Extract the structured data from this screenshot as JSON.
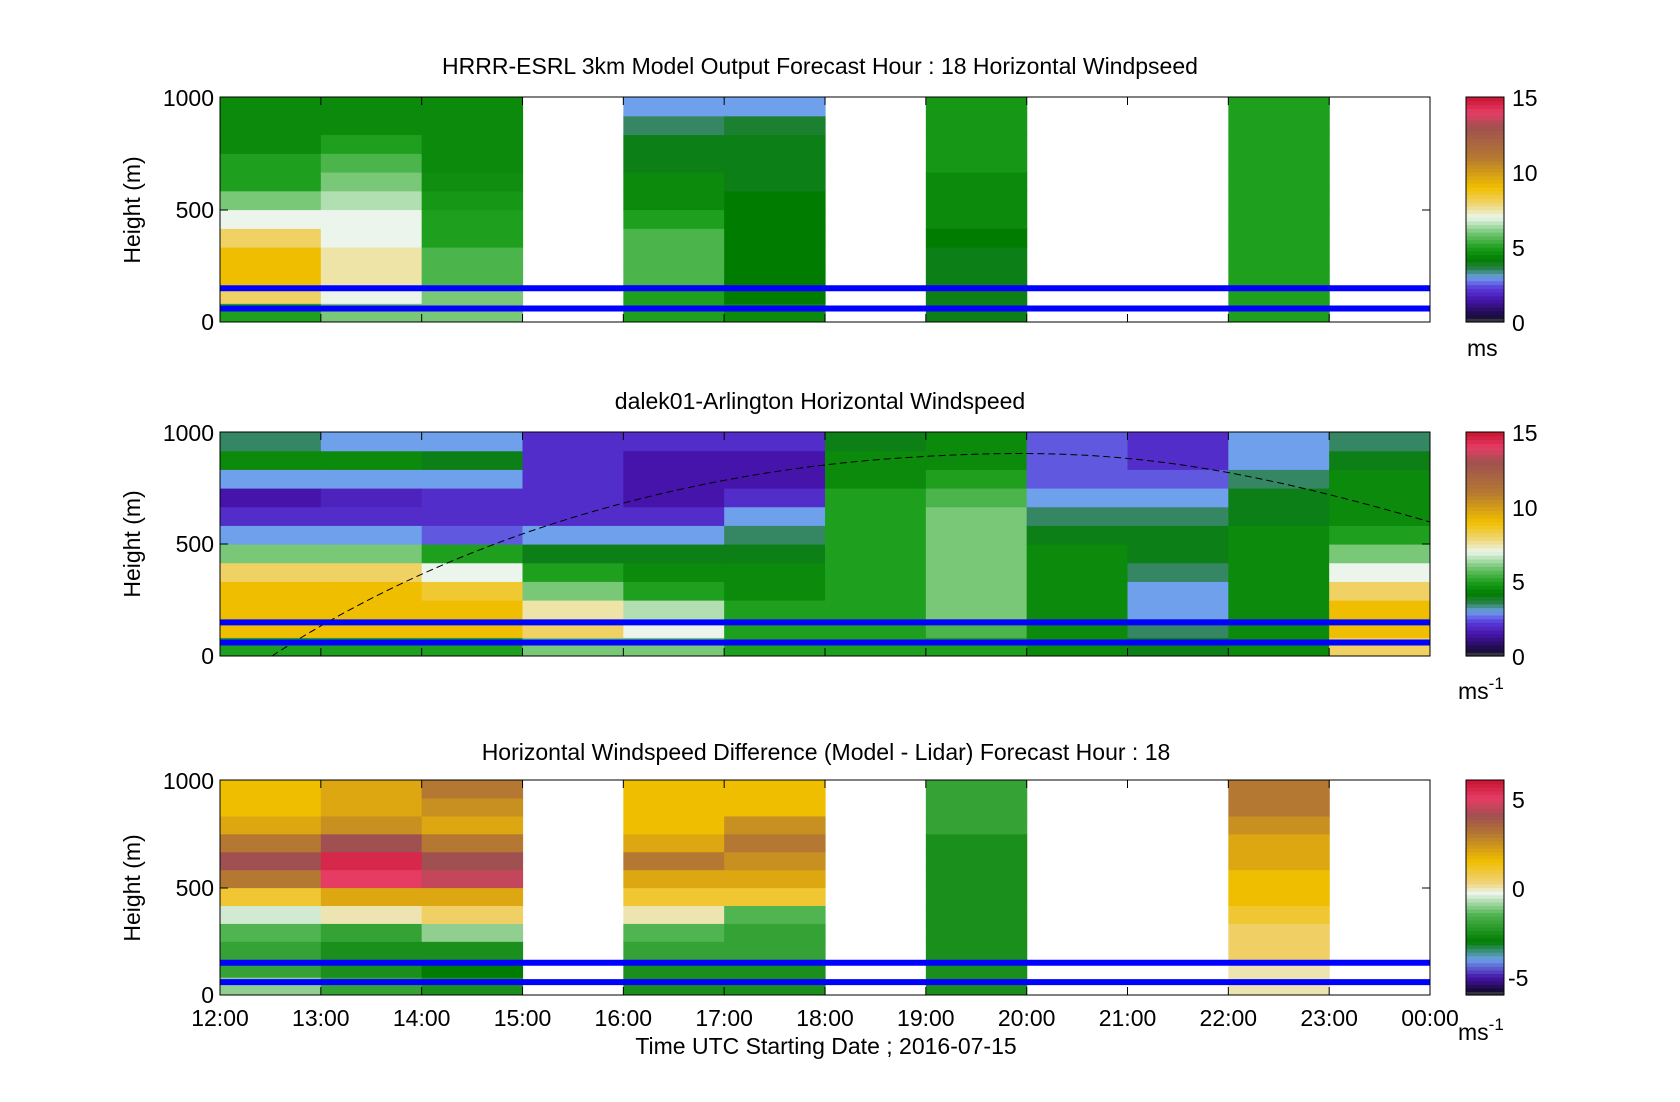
{
  "figure": {
    "xlabel": "Time UTC  Starting Date ; 2016-07-15",
    "x_tick_labels": [
      "12:00",
      "13:00",
      "14:00",
      "15:00",
      "16:00",
      "17:00",
      "18:00",
      "19:00",
      "20:00",
      "21:00",
      "22:00",
      "23:00",
      "00:00"
    ]
  },
  "chart_data": [
    {
      "type": "heatmap",
      "title": "HRRR-ESRL 3km Model Output   Forecast Hour : 18 Horizontal Windpseed",
      "ylabel": "Height (m)",
      "xlim": [
        "12:00",
        "00:00"
      ],
      "ylim": [
        0,
        1000
      ],
      "y_ticks": [
        "0",
        "500",
        "1000"
      ],
      "clim": [
        0,
        15
      ],
      "colorbar_ticks": [
        "0",
        "5",
        "10",
        "15"
      ],
      "colorbar_unit": "ms",
      "reference_lines_m": [
        60,
        150
      ],
      "profiles_approx_ms": [
        {
          "hour": "12:00",
          "bottom_to_top": [
            5,
            8,
            9,
            9,
            8,
            7,
            6,
            5,
            5,
            4.5,
            4.5,
            4.5
          ]
        },
        {
          "hour": "13:00",
          "bottom_to_top": [
            6,
            7,
            7.5,
            7.5,
            7,
            7,
            6.5,
            6,
            5.5,
            5,
            4.5,
            4.5
          ]
        },
        {
          "hour": "14:00",
          "bottom_to_top": [
            6,
            6,
            5.5,
            5.5,
            5,
            5,
            4.8,
            4.6,
            4.5,
            4.5,
            4.5,
            4.5
          ]
        },
        {
          "hour": "15:00",
          "bottom_to_top": null
        },
        {
          "hour": "16:00",
          "bottom_to_top": [
            5,
            5,
            5.5,
            5.5,
            5.5,
            5,
            4.5,
            4.5,
            4,
            4,
            3.5,
            3
          ]
        },
        {
          "hour": "17:00",
          "bottom_to_top": [
            4.5,
            4.2,
            4.2,
            4.2,
            4.2,
            4.2,
            4.2,
            4,
            4,
            4,
            3.8,
            3
          ]
        },
        {
          "hour": "18:00",
          "bottom_to_top": null
        },
        {
          "hour": "19:00",
          "bottom_to_top": [
            4,
            4,
            4,
            4,
            4.2,
            4.5,
            4.5,
            4.5,
            4.8,
            4.8,
            4.8,
            4.8
          ]
        },
        {
          "hour": "20:00",
          "bottom_to_top": null
        },
        {
          "hour": "21:00",
          "bottom_to_top": null
        },
        {
          "hour": "22:00",
          "bottom_to_top": [
            5,
            5,
            5,
            5,
            5,
            5,
            5,
            5,
            5,
            5,
            5,
            5
          ]
        },
        {
          "hour": "23:00",
          "bottom_to_top": null
        }
      ]
    },
    {
      "type": "heatmap",
      "title": "dalek01-Arlington  Horizontal Windspeed",
      "ylabel": "Height (m)",
      "xlim": [
        "12:00",
        "00:00"
      ],
      "ylim": [
        0,
        1000
      ],
      "y_ticks": [
        "0",
        "500",
        "1000"
      ],
      "clim": [
        0,
        15
      ],
      "colorbar_ticks": [
        "0",
        "5",
        "10",
        "15"
      ],
      "colorbar_unit": "ms",
      "colorbar_unit_exponent": "-1",
      "reference_lines_m": [
        60,
        150
      ],
      "profiles_approx_ms": [
        {
          "hour": "12:00",
          "bottom_to_top": [
            5,
            9,
            9,
            9,
            8,
            6,
            3,
            2,
            1.5,
            3,
            4.5,
            3.5
          ]
        },
        {
          "hour": "13:00",
          "bottom_to_top": [
            5,
            9,
            9,
            9,
            8,
            6,
            3,
            2,
            1.8,
            3,
            4.5,
            3
          ]
        },
        {
          "hour": "14:00",
          "bottom_to_top": [
            5,
            9,
            9,
            8.5,
            7,
            5,
            2.5,
            2,
            2,
            3,
            4,
            3
          ]
        },
        {
          "hour": "15:00",
          "bottom_to_top": [
            6,
            8,
            7.5,
            6,
            5,
            4,
            3,
            2,
            2,
            2,
            2,
            2
          ]
        },
        {
          "hour": "16:00",
          "bottom_to_top": [
            6,
            7,
            6.5,
            5,
            4.5,
            4,
            3,
            2,
            1.5,
            1.5,
            1.5,
            2
          ]
        },
        {
          "hour": "17:00",
          "bottom_to_top": [
            5,
            5,
            5,
            4.5,
            4.5,
            4,
            3.5,
            3,
            2,
            1.5,
            1.5,
            2
          ]
        },
        {
          "hour": "18:00",
          "bottom_to_top": [
            5,
            5,
            5,
            5,
            5,
            5,
            5,
            5,
            5,
            4.5,
            4.5,
            4
          ]
        },
        {
          "hour": "19:00",
          "bottom_to_top": [
            5,
            5.5,
            6,
            6,
            6,
            6,
            6,
            6,
            5.5,
            5,
            4.5,
            4.5
          ]
        },
        {
          "hour": "20:00",
          "bottom_to_top": [
            4.5,
            4.5,
            4.5,
            4.5,
            4.5,
            4.5,
            4,
            3.5,
            3,
            2.5,
            2.5,
            2.5
          ]
        },
        {
          "hour": "21:00",
          "bottom_to_top": [
            4,
            3.5,
            3,
            3,
            3.5,
            4,
            4,
            3.5,
            3,
            2.5,
            2,
            2
          ]
        },
        {
          "hour": "22:00",
          "bottom_to_top": [
            4.5,
            4.5,
            4.5,
            4.5,
            4.5,
            4.5,
            4.5,
            4,
            4,
            3.5,
            3,
            3
          ]
        },
        {
          "hour": "23:00",
          "bottom_to_top": [
            8,
            9,
            9,
            8,
            7,
            6,
            5,
            4.5,
            4.5,
            4.5,
            4,
            3.5
          ]
        }
      ]
    },
    {
      "type": "heatmap",
      "title": "Horizontal Windspeed Difference (Model - Lidar) Forecast Hour : 18",
      "ylabel": "Height (m)",
      "xlim": [
        "12:00",
        "00:00"
      ],
      "ylim": [
        0,
        1000
      ],
      "y_ticks": [
        "0",
        "500",
        "1000"
      ],
      "clim": [
        -6,
        6
      ],
      "colorbar_ticks": [
        "-5",
        "0",
        "5"
      ],
      "colorbar_unit": "ms",
      "colorbar_unit_exponent": "-1",
      "reference_lines_m": [
        60,
        150
      ],
      "profiles_approx_ms": [
        {
          "hour": "12:00",
          "bottom_to_top": [
            -1,
            -2,
            -2,
            -1.5,
            -0.5,
            1,
            3,
            4,
            3,
            2,
            1.5,
            1.5
          ]
        },
        {
          "hour": "13:00",
          "bottom_to_top": [
            -2,
            -2.5,
            -2.5,
            -2,
            0,
            2,
            5,
            5.5,
            4,
            2.5,
            2,
            2
          ]
        },
        {
          "hour": "14:00",
          "bottom_to_top": [
            -2.5,
            -3,
            -2.5,
            -1,
            0.5,
            2,
            4.5,
            4,
            3,
            2,
            2.5,
            3
          ]
        },
        {
          "hour": "15:00",
          "bottom_to_top": null
        },
        {
          "hour": "16:00",
          "bottom_to_top": [
            -2.5,
            -2.5,
            -2,
            -1.5,
            0,
            1,
            2,
            3,
            2,
            1.5,
            1.5,
            1.5
          ]
        },
        {
          "hour": "17:00",
          "bottom_to_top": [
            -2.5,
            -2.5,
            -2,
            -2,
            -1.5,
            1,
            2,
            2.5,
            3,
            2.5,
            1.5,
            1.5
          ]
        },
        {
          "hour": "18:00",
          "bottom_to_top": null
        },
        {
          "hour": "19:00",
          "bottom_to_top": [
            -2.5,
            -2.5,
            -2.5,
            -2.5,
            -2.5,
            -2.5,
            -2.5,
            -2.5,
            -2.5,
            -2,
            -2,
            -2
          ]
        },
        {
          "hour": "20:00",
          "bottom_to_top": null
        },
        {
          "hour": "21:00",
          "bottom_to_top": null
        },
        {
          "hour": "22:00",
          "bottom_to_top": [
            0,
            0,
            0.5,
            0.5,
            1,
            1.5,
            1.5,
            2,
            2,
            2.5,
            3,
            3
          ]
        },
        {
          "hour": "23:00",
          "bottom_to_top": null
        }
      ]
    }
  ]
}
